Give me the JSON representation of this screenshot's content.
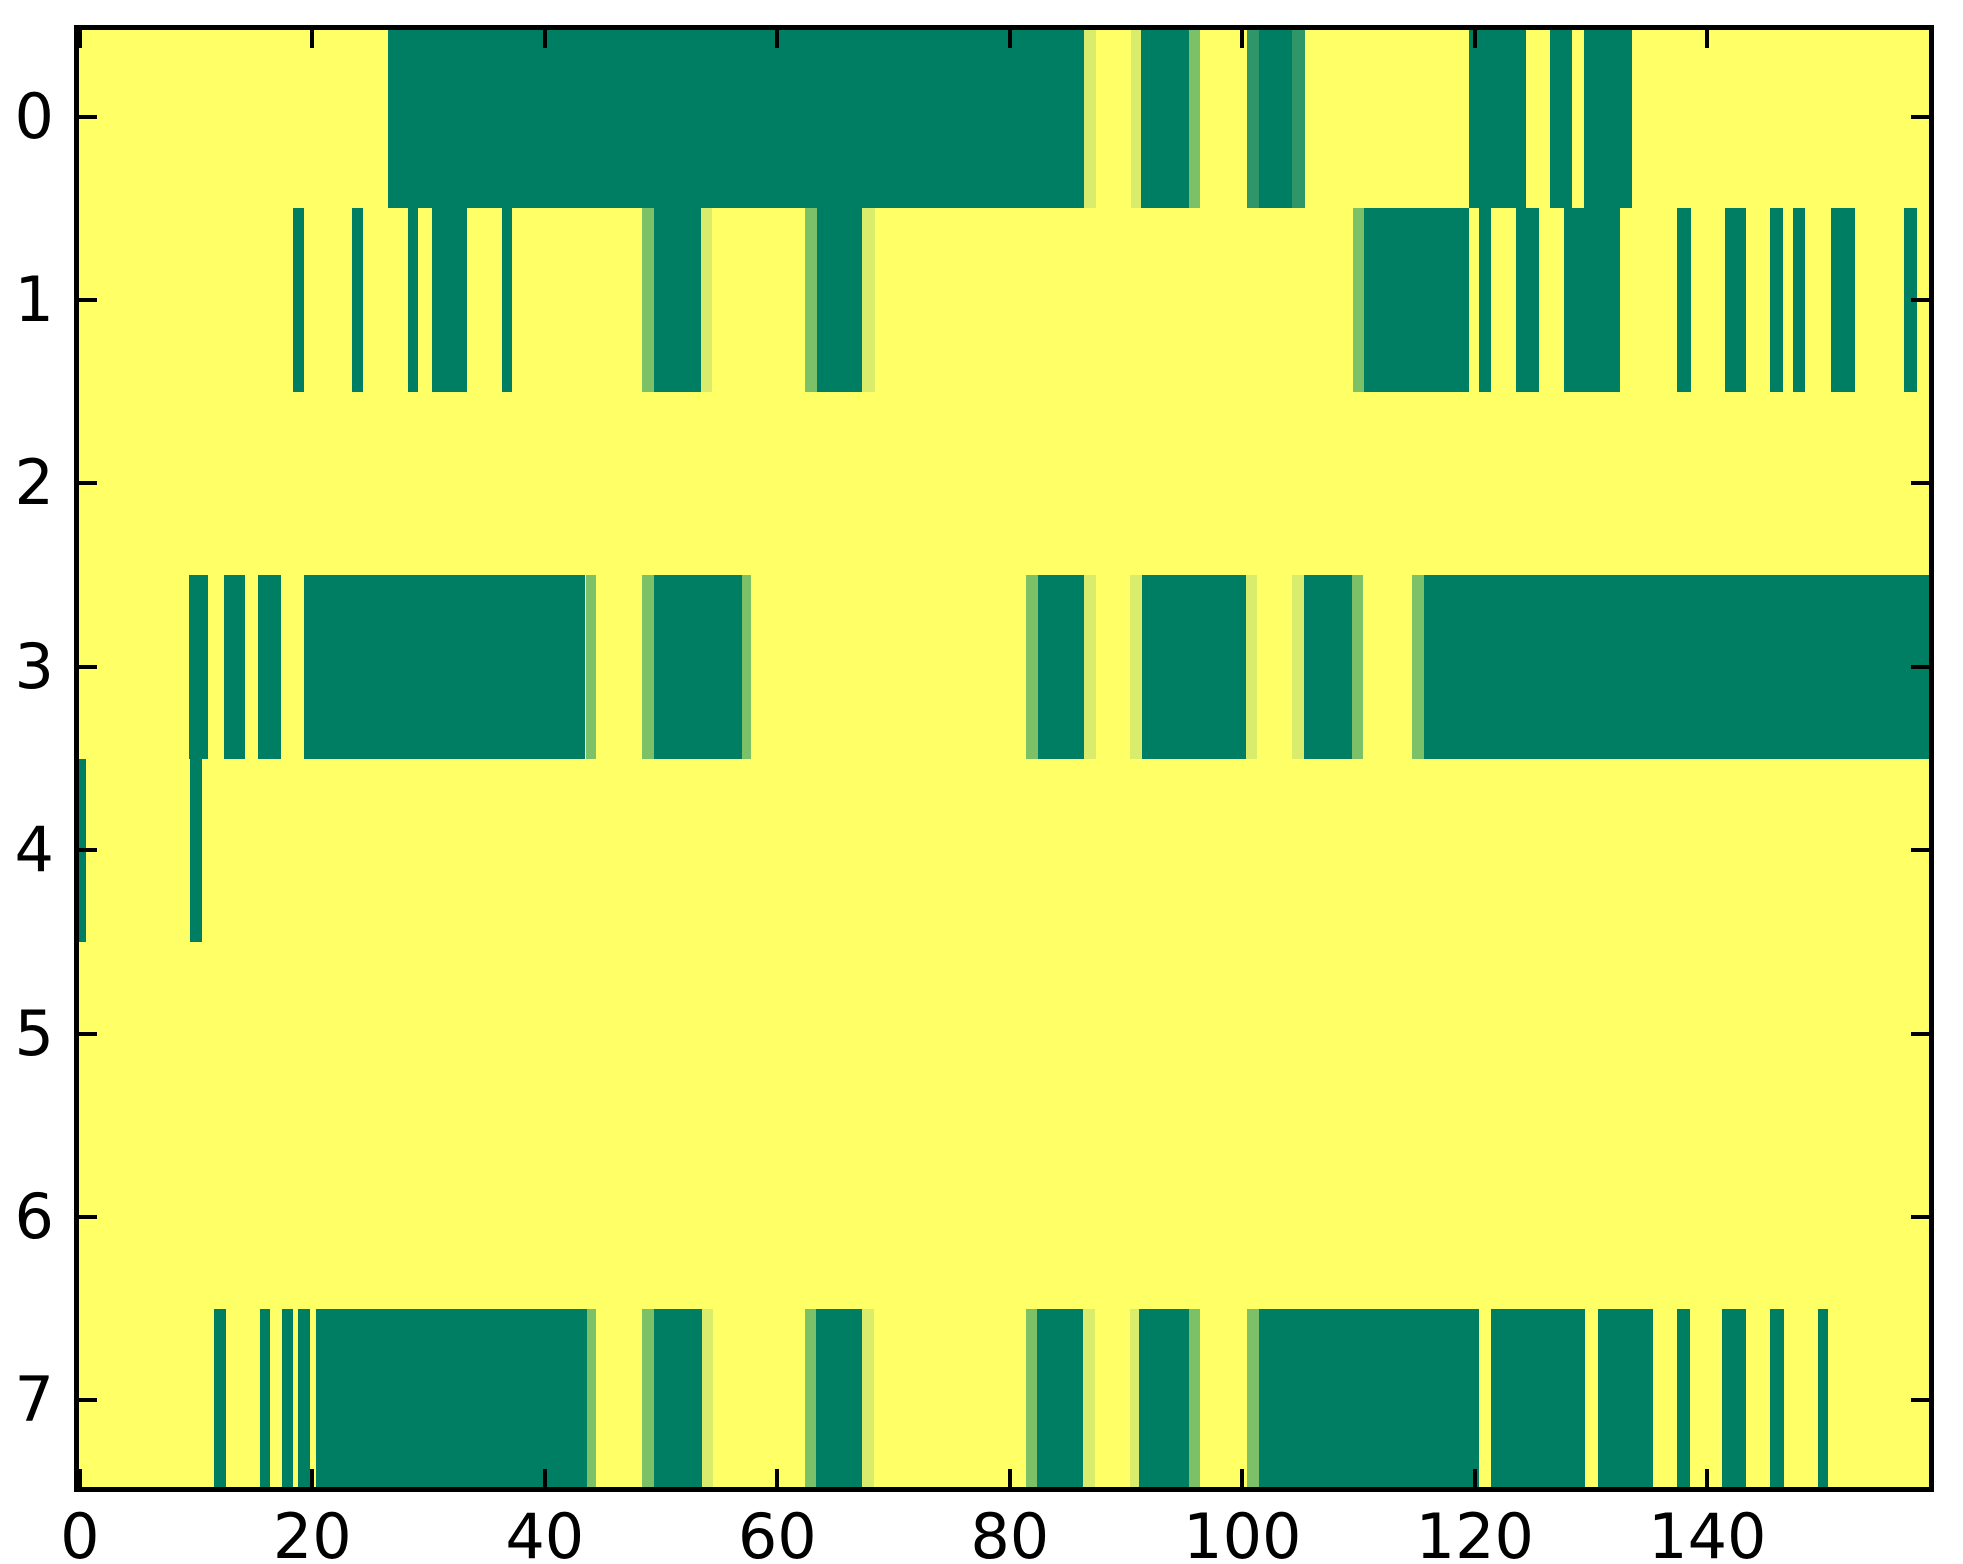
{
  "chart_data": {
    "type": "heatmap",
    "title": "",
    "xlabel": "",
    "ylabel": "",
    "colormap": "summer-like (yellow = 0, dark teal = 1)",
    "x_range": [
      -0.5,
      159.5
    ],
    "n_cols": 160,
    "n_rows": 8,
    "x_ticks": [
      0,
      20,
      40,
      60,
      80,
      100,
      120,
      140
    ],
    "y_ticks": [
      0,
      1,
      2,
      3,
      4,
      5,
      6,
      7
    ],
    "grid": false,
    "legend": "none",
    "colors": {
      "background": "#ffff66",
      "dark": "#007e63",
      "mid": "#7cc168",
      "pale": "#d9ec6c",
      "teal_mid": "#2e9668",
      "axis": "#000000",
      "figure_background": "#ffffff"
    },
    "rows": [
      {
        "y": 0,
        "segments": [
          [
            26.5,
            86.4,
            "dark"
          ],
          [
            86.4,
            87.4,
            "pale"
          ],
          [
            90.4,
            91.3,
            "pale"
          ],
          [
            91.3,
            95.4,
            "dark"
          ],
          [
            95.4,
            96.4,
            "mid"
          ],
          [
            100.4,
            101.4,
            "teal_mid"
          ],
          [
            101.4,
            104.3,
            "dark"
          ],
          [
            104.3,
            105.4,
            "teal_mid"
          ],
          [
            119.5,
            124.4,
            "dark"
          ],
          [
            126.5,
            128.4,
            "dark"
          ],
          [
            129.4,
            133.5,
            "dark"
          ]
        ]
      },
      {
        "y": 1,
        "segments": [
          [
            18.3,
            19.3,
            "dark"
          ],
          [
            23.4,
            24.4,
            "dark"
          ],
          [
            28.2,
            29.1,
            "dark"
          ],
          [
            30.3,
            33.3,
            "dark"
          ],
          [
            36.3,
            37.2,
            "dark"
          ],
          [
            48.4,
            49.4,
            "mid"
          ],
          [
            49.4,
            53.4,
            "dark"
          ],
          [
            53.4,
            54.4,
            "pale"
          ],
          [
            62.4,
            63.4,
            "mid"
          ],
          [
            63.4,
            67.3,
            "dark"
          ],
          [
            67.3,
            68.4,
            "pale"
          ],
          [
            109.5,
            110.5,
            "mid"
          ],
          [
            110.5,
            119.5,
            "dark"
          ],
          [
            120.4,
            121.4,
            "dark"
          ],
          [
            123.5,
            125.5,
            "dark"
          ],
          [
            127.7,
            132.5,
            "dark"
          ],
          [
            137.4,
            138.6,
            "dark"
          ],
          [
            141.5,
            143.3,
            "dark"
          ],
          [
            145.4,
            146.5,
            "dark"
          ],
          [
            147.4,
            148.4,
            "dark"
          ],
          [
            150.6,
            152.7,
            "dark"
          ],
          [
            156.9,
            158.0,
            "dark"
          ]
        ]
      },
      {
        "y": 2,
        "segments": []
      },
      {
        "y": 3,
        "segments": [
          [
            9.4,
            11.0,
            "dark"
          ],
          [
            12.4,
            14.2,
            "dark"
          ],
          [
            15.3,
            17.3,
            "dark"
          ],
          [
            19.3,
            43.5,
            "dark"
          ],
          [
            43.5,
            44.4,
            "mid"
          ],
          [
            48.4,
            49.4,
            "mid"
          ],
          [
            49.4,
            57.0,
            "dark"
          ],
          [
            57.0,
            57.7,
            "mid"
          ],
          [
            81.4,
            82.4,
            "mid"
          ],
          [
            82.4,
            86.4,
            "dark"
          ],
          [
            86.4,
            87.4,
            "pale"
          ],
          [
            90.3,
            91.4,
            "pale"
          ],
          [
            91.4,
            100.3,
            "dark"
          ],
          [
            100.3,
            101.3,
            "pale"
          ],
          [
            104.3,
            105.3,
            "pale"
          ],
          [
            105.3,
            109.4,
            "dark"
          ],
          [
            109.4,
            110.4,
            "mid"
          ],
          [
            114.6,
            115.6,
            "mid"
          ],
          [
            115.6,
            159.5,
            "dark"
          ]
        ]
      },
      {
        "y": 4,
        "segments": [
          [
            -0.5,
            0.5,
            "dark"
          ],
          [
            9.5,
            10.5,
            "dark"
          ]
        ]
      },
      {
        "y": 5,
        "segments": []
      },
      {
        "y": 6,
        "segments": []
      },
      {
        "y": 7,
        "segments": [
          [
            11.5,
            12.6,
            "dark"
          ],
          [
            15.5,
            16.4,
            "dark"
          ],
          [
            17.4,
            18.3,
            "dark"
          ],
          [
            18.8,
            19.8,
            "dark"
          ],
          [
            20.3,
            43.6,
            "dark"
          ],
          [
            43.6,
            44.4,
            "mid"
          ],
          [
            48.4,
            49.4,
            "mid"
          ],
          [
            49.4,
            53.5,
            "dark"
          ],
          [
            53.5,
            54.5,
            "pale"
          ],
          [
            62.4,
            63.3,
            "mid"
          ],
          [
            63.3,
            67.3,
            "dark"
          ],
          [
            67.3,
            68.3,
            "pale"
          ],
          [
            81.4,
            82.3,
            "mid"
          ],
          [
            82.3,
            86.3,
            "dark"
          ],
          [
            86.3,
            87.3,
            "pale"
          ],
          [
            90.3,
            91.1,
            "pale"
          ],
          [
            91.1,
            95.4,
            "dark"
          ],
          [
            95.4,
            96.4,
            "mid"
          ],
          [
            100.4,
            101.4,
            "mid"
          ],
          [
            101.4,
            120.4,
            "dark"
          ],
          [
            121.4,
            129.5,
            "dark"
          ],
          [
            130.6,
            135.3,
            "dark"
          ],
          [
            137.4,
            138.5,
            "dark"
          ],
          [
            141.3,
            143.3,
            "dark"
          ],
          [
            145.4,
            146.6,
            "dark"
          ],
          [
            149.5,
            150.4,
            "dark"
          ]
        ]
      }
    ]
  }
}
